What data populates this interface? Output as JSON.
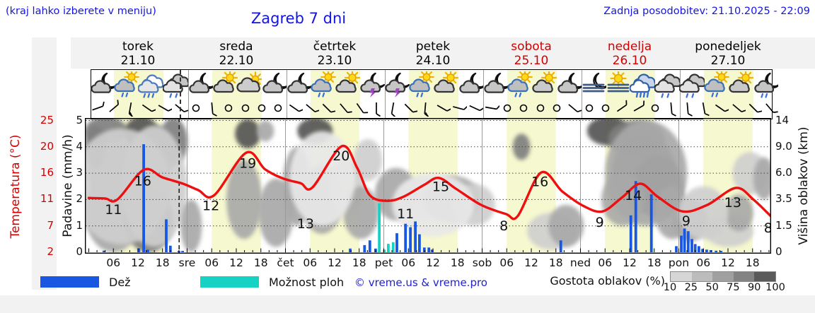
{
  "header": {
    "hint": "(kraj lahko izberete v meniju)",
    "title": "Zagreb 7 dni",
    "updated": "Zadnja posodobitev: 21.10.2025 - 22:09"
  },
  "days": [
    {
      "name": "torek",
      "date": "21.10",
      "color": "#000000"
    },
    {
      "name": "sreda",
      "date": "22.10",
      "color": "#000000"
    },
    {
      "name": "četrtek",
      "date": "23.10",
      "color": "#000000"
    },
    {
      "name": "petek",
      "date": "24.10",
      "color": "#000000"
    },
    {
      "name": "sobota",
      "date": "25.10",
      "color": "#d40000"
    },
    {
      "name": "nedelja",
      "date": "26.10",
      "color": "#d40000"
    },
    {
      "name": "ponedeljek",
      "date": "27.10",
      "color": "#000000"
    }
  ],
  "axes": {
    "temp_label": "Temperatura (°C)",
    "temp_ticks": [
      "25",
      "20",
      "16",
      "11",
      "7",
      "2"
    ],
    "precip_label": "Padavine (mm/h)",
    "precip_ticks": [
      "5",
      "4",
      "3",
      "2",
      "1",
      "0"
    ],
    "cloud_label": "Višina oblakov (km)",
    "cloud_ticks": [
      "14",
      "9.0",
      "6.0",
      "3.5",
      "1.5",
      "0"
    ],
    "time_ticks": [
      "06",
      "12",
      "18"
    ],
    "midnight_labels": [
      "sre",
      "čet",
      "pet",
      "sob",
      "ned",
      "pon"
    ]
  },
  "legend": {
    "rain": "Dež",
    "showers": "Možnost ploh",
    "copyright": "© vreme.us & vreme.pro",
    "cloud_density": "Gostota oblakov (%)",
    "density_ticks": [
      "10",
      "25",
      "50",
      "75",
      "90",
      "100"
    ],
    "density_colors": [
      "#d6d6d6",
      "#bcbcbc",
      "#a0a0a0",
      "#838383",
      "#5a5a5a"
    ]
  },
  "colors": {
    "rain_bar": "#1857e2",
    "shower_bar": "#16d2c2",
    "temp_curve": "#ee1010",
    "day_band": "#f6f8cf",
    "accent_blue": "#1414e6",
    "accent_red": "#d40000"
  },
  "chart_data": {
    "type": "meteogram (line + bar + cloud shading)",
    "x_axis": {
      "unit": "hours from torek 00:00",
      "range": [
        0,
        166.5
      ],
      "day_width_hours": 24
    },
    "temp_axis_ticks_c": [
      2,
      7,
      11,
      16,
      20,
      25
    ],
    "precip_axis_mmh": [
      0,
      5
    ],
    "cloud_axis_km": [
      0,
      1.5,
      3.5,
      6.0,
      9.0,
      14
    ],
    "now_hour": 22.05,
    "temperature_c": [
      [
        0,
        11.3
      ],
      [
        4,
        11.2
      ],
      [
        7,
        11.0
      ],
      [
        13.4,
        16.5
      ],
      [
        18,
        15.2
      ],
      [
        23,
        14.0
      ],
      [
        26.7,
        12.8
      ],
      [
        30.6,
        11.8
      ],
      [
        38.4,
        19.1
      ],
      [
        43,
        16.6
      ],
      [
        47.4,
        15.0
      ],
      [
        51.7,
        14.1
      ],
      [
        54.6,
        13.3
      ],
      [
        61.7,
        20.1
      ],
      [
        65.5,
        16.8
      ],
      [
        68.6,
        11.8
      ],
      [
        72.8,
        10.8
      ],
      [
        76.7,
        11.5
      ],
      [
        81.9,
        13.8
      ],
      [
        85.4,
        15.1
      ],
      [
        89.7,
        13.0
      ],
      [
        95.7,
        10.2
      ],
      [
        101.8,
        8.8
      ],
      [
        104.7,
        8.5
      ],
      [
        110.4,
        16.1
      ],
      [
        115.6,
        12.5
      ],
      [
        120.8,
        10.0
      ],
      [
        125.4,
        9.2
      ],
      [
        130.3,
        11.5
      ],
      [
        134.6,
        14.0
      ],
      [
        138.9,
        11.5
      ],
      [
        144.9,
        9.2
      ],
      [
        151,
        10.2
      ],
      [
        157.9,
        13.2
      ],
      [
        162.2,
        11.0
      ],
      [
        166.4,
        8.5
      ]
    ],
    "temp_point_labels": [
      [
        6,
        1.61,
        "11"
      ],
      [
        13.2,
        2.69,
        "16"
      ],
      [
        29.8,
        1.75,
        "12"
      ],
      [
        38.8,
        3.37,
        "19"
      ],
      [
        52.9,
        1.07,
        "13"
      ],
      [
        61.6,
        3.64,
        "20"
      ],
      [
        77.3,
        1.45,
        "11"
      ],
      [
        85.9,
        2.48,
        "15"
      ],
      [
        101.3,
        0.99,
        "8"
      ],
      [
        110.1,
        2.67,
        "16"
      ],
      [
        124.7,
        1.13,
        "9"
      ],
      [
        132.9,
        2.15,
        "14"
      ],
      [
        145.8,
        1.18,
        "9"
      ],
      [
        157.2,
        1.88,
        "13"
      ],
      [
        165.8,
        0.91,
        "8"
      ]
    ],
    "precip_bars_mmh": [
      [
        3.7,
        0.06,
        "r"
      ],
      [
        12.2,
        0.15,
        "r"
      ],
      [
        13.4,
        4.1,
        "r"
      ],
      [
        14.4,
        0.1,
        "r"
      ],
      [
        18.9,
        1.25,
        "r"
      ],
      [
        19.9,
        0.25,
        "r"
      ],
      [
        22.0,
        0.05,
        "r"
      ],
      [
        22.9,
        0.05,
        "r"
      ],
      [
        63.8,
        0.14,
        "r"
      ],
      [
        67.3,
        0.27,
        "r"
      ],
      [
        68.6,
        0.45,
        "r"
      ],
      [
        70.0,
        0.14,
        "r"
      ],
      [
        70.9,
        1.85,
        "s"
      ],
      [
        72.1,
        0.1,
        "s"
      ],
      [
        73.1,
        0.32,
        "s"
      ],
      [
        74.3,
        0.38,
        "s"
      ],
      [
        75.2,
        0.72,
        "r"
      ],
      [
        77.3,
        1.08,
        "r"
      ],
      [
        78.5,
        0.95,
        "r"
      ],
      [
        79.7,
        1.17,
        "r"
      ],
      [
        80.7,
        0.68,
        "r"
      ],
      [
        81.9,
        0.18,
        "r"
      ],
      [
        83.0,
        0.18,
        "r"
      ],
      [
        83.8,
        0.1,
        "r"
      ],
      [
        115.2,
        0.45,
        "r"
      ],
      [
        132.3,
        1.4,
        "r"
      ],
      [
        133.5,
        2.7,
        "r"
      ],
      [
        137.3,
        2.2,
        "r"
      ],
      [
        143.4,
        0.23,
        "r"
      ],
      [
        144.6,
        0.63,
        "r"
      ],
      [
        145.4,
        0.9,
        "r"
      ],
      [
        146.3,
        0.8,
        "r"
      ],
      [
        147.2,
        0.5,
        "r"
      ],
      [
        148.0,
        0.31,
        "r"
      ],
      [
        148.9,
        0.23,
        "r"
      ],
      [
        149.8,
        0.13,
        "r"
      ],
      [
        150.8,
        0.1,
        "r"
      ],
      [
        151.8,
        0.08,
        "r"
      ],
      [
        153.1,
        0.06,
        "r"
      ],
      [
        154.3,
        0.05,
        "r"
      ]
    ],
    "cloud_blobs": [
      [
        4.2,
        4.6,
        5.2,
        0.55,
        75
      ],
      [
        12.9,
        4.5,
        4.3,
        0.65,
        90
      ],
      [
        7.7,
        3.0,
        7.8,
        1.2,
        50
      ],
      [
        16.3,
        3.8,
        5.2,
        1.0,
        75
      ],
      [
        6.0,
        1.5,
        6.9,
        1.5,
        50
      ],
      [
        14.6,
        1.2,
        6.0,
        1.2,
        75
      ],
      [
        20.6,
        4.2,
        3.5,
        0.9,
        75
      ],
      [
        1.6,
        4.0,
        2.6,
        0.8,
        75
      ],
      [
        8,
        2.5,
        12,
        2.2,
        25
      ],
      [
        16,
        2.5,
        8,
        2.3,
        25
      ],
      [
        25.0,
        1.0,
        2.6,
        1.0,
        50
      ],
      [
        38.8,
        4.5,
        3.1,
        0.55,
        90
      ],
      [
        37.9,
        2.0,
        4.3,
        1.5,
        50
      ],
      [
        45.7,
        1.5,
        4.3,
        1.3,
        50
      ],
      [
        43.1,
        4.6,
        2.1,
        0.4,
        50
      ],
      [
        55.2,
        4.6,
        4.3,
        0.5,
        90
      ],
      [
        50.8,
        2.5,
        3.5,
        1.5,
        50
      ],
      [
        56.9,
        2.0,
        5.2,
        1.3,
        50
      ],
      [
        62.9,
        2.5,
        4.3,
        1.0,
        25
      ],
      [
        68.1,
        3.5,
        3.5,
        0.8,
        25
      ],
      [
        66.4,
        1.5,
        4.3,
        1.0,
        50
      ],
      [
        57,
        2.8,
        8,
        1.8,
        10
      ],
      [
        75.0,
        2.2,
        5.2,
        1.0,
        50
      ],
      [
        81.9,
        2.0,
        6.9,
        0.8,
        25
      ],
      [
        88.8,
        2.0,
        6.9,
        0.9,
        50
      ],
      [
        94.0,
        1.8,
        5.2,
        0.8,
        25
      ],
      [
        84,
        1.8,
        10,
        1.2,
        10
      ],
      [
        105.6,
        4.0,
        2.1,
        0.5,
        75
      ],
      [
        113.0,
        0.8,
        6.0,
        0.7,
        25
      ],
      [
        116.5,
        1.0,
        4.3,
        0.8,
        50
      ],
      [
        126.8,
        4.6,
        5.2,
        0.55,
        90
      ],
      [
        133.7,
        4.3,
        6.9,
        0.7,
        75
      ],
      [
        135.5,
        3.0,
        7.8,
        1.5,
        75
      ],
      [
        138.9,
        2.5,
        6.0,
        1.2,
        90
      ],
      [
        130.3,
        2.0,
        5.2,
        1.0,
        50
      ],
      [
        142.4,
        1.5,
        4.3,
        1.0,
        50
      ],
      [
        136,
        3.0,
        10,
        2.0,
        50
      ],
      [
        146.7,
        1.2,
        4.3,
        0.8,
        50
      ],
      [
        156.2,
        0.8,
        6.0,
        0.6,
        25
      ],
      [
        161.4,
        3.0,
        4.3,
        0.8,
        25
      ],
      [
        164.8,
        2.8,
        2.6,
        0.8,
        50
      ],
      [
        158.7,
        1.5,
        3.5,
        0.7,
        50
      ],
      [
        150,
        1.5,
        6,
        1.0,
        25
      ]
    ],
    "weather_icons": [
      "moon-cloud",
      "sun-rain",
      "rain",
      "clouds-rain",
      "moon-cloud",
      "sun-cloud",
      "cloud-sun",
      "moon-cloud",
      "moon-cloud",
      "sun-rain",
      "sun-cloud",
      "moon-storm",
      "moon-storm",
      "sun-rain",
      "sun-cloud",
      "moon-cloud",
      "moon-cloud",
      "sun-rain",
      "sun-cloud",
      "moon-cloud",
      "moon-fog",
      "sun-fog",
      "rain-heavy",
      "clouds-rain",
      "clouds-rain",
      "sun-rain",
      "sun-cloud",
      "moon-rain"
    ],
    "wind_symbols": [
      [
        "b",
        -20
      ],
      [
        "b",
        -40
      ],
      [
        "f",
        100
      ],
      [
        "b",
        35
      ],
      [
        "b",
        30
      ],
      [
        "b",
        40
      ],
      [
        "c",
        0
      ],
      [
        "b",
        85
      ],
      [
        "c",
        0
      ],
      [
        "c",
        0
      ],
      [
        "c",
        0
      ],
      [
        "c",
        0
      ],
      [
        "b",
        35
      ],
      [
        "b",
        40
      ],
      [
        "b",
        45
      ],
      [
        "b",
        50
      ],
      [
        "b",
        55
      ],
      [
        "b",
        90
      ],
      [
        "b",
        100
      ],
      [
        "b",
        45
      ],
      [
        "f",
        95
      ],
      [
        "b",
        30
      ],
      [
        "b",
        15
      ],
      [
        "b",
        25
      ],
      [
        "b",
        10
      ],
      [
        "c",
        0
      ],
      [
        "c",
        0
      ],
      [
        "c",
        0
      ],
      [
        "c",
        0
      ],
      [
        "b",
        40
      ],
      [
        "c",
        0
      ],
      [
        "c",
        0
      ],
      [
        "b",
        -35
      ],
      [
        "b",
        -30
      ],
      [
        "c",
        0
      ],
      [
        "b",
        85
      ],
      [
        "b",
        85
      ],
      [
        "b",
        80
      ],
      [
        "b",
        35
      ],
      [
        "b",
        40
      ],
      [
        "b",
        45
      ],
      [
        "b",
        50
      ]
    ]
  }
}
